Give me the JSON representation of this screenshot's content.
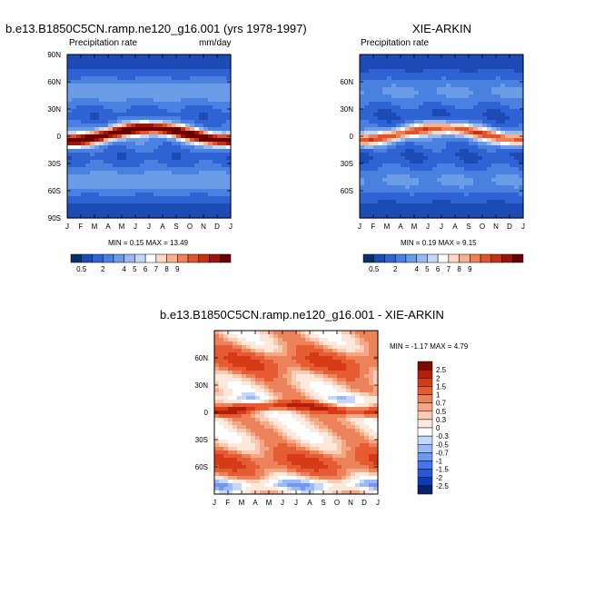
{
  "colors": {
    "precip_scale": [
      "#08306b",
      "#1d4bb5",
      "#2f63d4",
      "#4a80e0",
      "#6b9ce8",
      "#9ab8f0",
      "#c4d7f6",
      "#ffffff",
      "#fdd9c4",
      "#f7b08e",
      "#ee7f58",
      "#e0552d",
      "#c53314",
      "#9b1508",
      "#6b0000"
    ],
    "diff_scale": [
      "#08216b",
      "#0d3cb0",
      "#2557d6",
      "#4676e6",
      "#6f98ef",
      "#9bb9f4",
      "#c6d8f8",
      "#ffffff",
      "#fde9dc",
      "#f9cbb3",
      "#f3a784",
      "#ec8259",
      "#e55c34",
      "#d63a17",
      "#b51e08",
      "#7d0a00"
    ]
  },
  "panels": {
    "model": {
      "title": "b.e13.B1850C5CN.ramp.ne120_g16.001 (yrs 1978-1997)",
      "left_label": "Precipitation rate",
      "right_label": "mm/day",
      "stats": "MIN =   0.15 MAX =  13.49"
    },
    "obs": {
      "title": "XIE-ARKIN",
      "left_label": "Precipitation rate",
      "stats": "MIN =   0.19 MAX =   9.15"
    },
    "diff": {
      "title": "b.e13.B1850C5CN.ramp.ne120_g16.001 - XIE-ARKIN",
      "stats": "MIN =  -1.17 MAX =   4.79"
    }
  },
  "chart_data": [
    {
      "type": "heatmap",
      "title": "b.e13.B1850C5CN.ramp.ne120_g16.001 (yrs 1978-1997)",
      "subtitle_left": "Precipitation rate",
      "subtitle_right": "mm/day",
      "x_ticks": [
        "J",
        "F",
        "M",
        "A",
        "M",
        "J",
        "J",
        "A",
        "S",
        "O",
        "N",
        "D",
        "J"
      ],
      "y_ticks": [
        "90N",
        "60N",
        "30N",
        "0",
        "30S",
        "60S",
        "90S"
      ],
      "ylim": [
        -90,
        90
      ],
      "colorbar_levels": [
        "0.5",
        "1",
        "2",
        "3",
        "4",
        "5",
        "6",
        "7",
        "8",
        "9",
        "10",
        "11",
        "12",
        "13"
      ],
      "colorbar_labels": [
        "0.5",
        "2",
        "4",
        "5",
        "6",
        "7",
        "8",
        "9"
      ],
      "min": 0.15,
      "max": 13.49,
      "itcz": {
        "lat_jan": -5,
        "lat_jul": 9,
        "peak": 12.5
      },
      "background": {
        "tropics": 5.5,
        "midlat": 3.5,
        "subtropics": 1.2,
        "polar": 0.6
      }
    },
    {
      "type": "heatmap",
      "title": "XIE-ARKIN",
      "subtitle_left": "Precipitation rate",
      "x_ticks": [
        "J",
        "F",
        "M",
        "A",
        "M",
        "J",
        "J",
        "A",
        "S",
        "O",
        "N",
        "D",
        "J"
      ],
      "y_ticks": [
        "60N",
        "30N",
        "0",
        "30S",
        "60S"
      ],
      "ylim": [
        -90,
        90
      ],
      "colorbar_levels": [
        "0.5",
        "1",
        "2",
        "3",
        "4",
        "5",
        "6",
        "7",
        "8",
        "9",
        "10",
        "11",
        "12",
        "13"
      ],
      "colorbar_labels": [
        "0.5",
        "2",
        "4",
        "5",
        "6",
        "7",
        "8",
        "9"
      ],
      "min": 0.19,
      "max": 9.15,
      "itcz": {
        "lat_jan": -4,
        "lat_jul": 9,
        "peak": 8.5
      },
      "background": {
        "tropics": 4.5,
        "midlat": 3.0,
        "subtropics": 1.3,
        "polar": 0.6
      }
    },
    {
      "type": "heatmap",
      "title": "b.e13.B1850C5CN.ramp.ne120_g16.001 - XIE-ARKIN",
      "x_ticks": [
        "J",
        "F",
        "M",
        "A",
        "M",
        "J",
        "J",
        "A",
        "S",
        "O",
        "N",
        "D",
        "J"
      ],
      "y_ticks": [
        "60N",
        "30N",
        "0",
        "30S",
        "60S"
      ],
      "ylim": [
        -90,
        90
      ],
      "colorbar_levels": [
        "-2.5",
        "-2",
        "-1.5",
        "-1",
        "-0.7",
        "-0.5",
        "-0.3",
        "0",
        "0.3",
        "0.5",
        "0.7",
        "1",
        "1.5",
        "2",
        "2.5"
      ],
      "colorbar_labels": [
        "2.5",
        "2",
        "1.5",
        "1",
        "0.7",
        "0.5",
        "0.3",
        "0",
        "-0.3",
        "-0.5",
        "-0.7",
        "-1",
        "-1.5",
        "-2",
        "-2.5"
      ],
      "min": -1.17,
      "max": 4.79
    }
  ]
}
